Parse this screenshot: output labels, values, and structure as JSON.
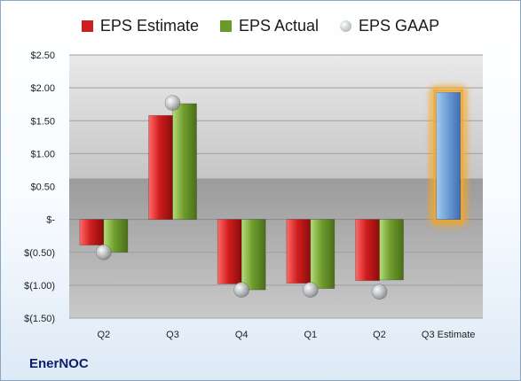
{
  "company": "EnerNOC",
  "legend": [
    {
      "label": "EPS Estimate",
      "color": "#cc1f1f",
      "shape": "square"
    },
    {
      "label": "EPS Actual",
      "color": "#6a9a2a",
      "shape": "square"
    },
    {
      "label": "EPS GAAP",
      "color": "#b8bcc2",
      "shape": "circle"
    }
  ],
  "chart_data": {
    "type": "bar",
    "categories": [
      "Q2",
      "Q3",
      "Q4",
      "Q1",
      "Q2",
      "Q3 Estimate"
    ],
    "series": [
      {
        "name": "EPS Estimate",
        "type": "bar",
        "color": "#cc1f1f",
        "values": [
          -0.39,
          1.58,
          -0.98,
          -0.97,
          -0.93,
          null
        ]
      },
      {
        "name": "EPS Actual",
        "type": "bar",
        "color": "#6a9a2a",
        "values": [
          -0.5,
          1.76,
          -1.07,
          -1.05,
          -0.92,
          null
        ]
      },
      {
        "name": "EPS GAAP",
        "type": "scatter",
        "color": "#b8bcc2",
        "values": [
          -0.5,
          1.77,
          -1.07,
          -1.07,
          -1.1,
          null
        ]
      },
      {
        "name": "",
        "type": "bar",
        "color": "#6f9fd8",
        "highlight": "#f5a623",
        "values": [
          null,
          null,
          null,
          null,
          null,
          1.93
        ]
      }
    ],
    "yticks": [
      2.5,
      2.0,
      1.5,
      1.0,
      0.5,
      0,
      -0.5,
      -1.0,
      -1.5
    ],
    "ytick_labels": [
      "$2.50",
      "$2.00",
      "$1.50",
      "$1.00",
      "$0.50",
      "$-",
      "$(0.50)",
      "$(1.00)",
      "$(1.50)"
    ],
    "ylim": [
      -1.5,
      2.5
    ],
    "grid": true,
    "legend_position": "top"
  }
}
